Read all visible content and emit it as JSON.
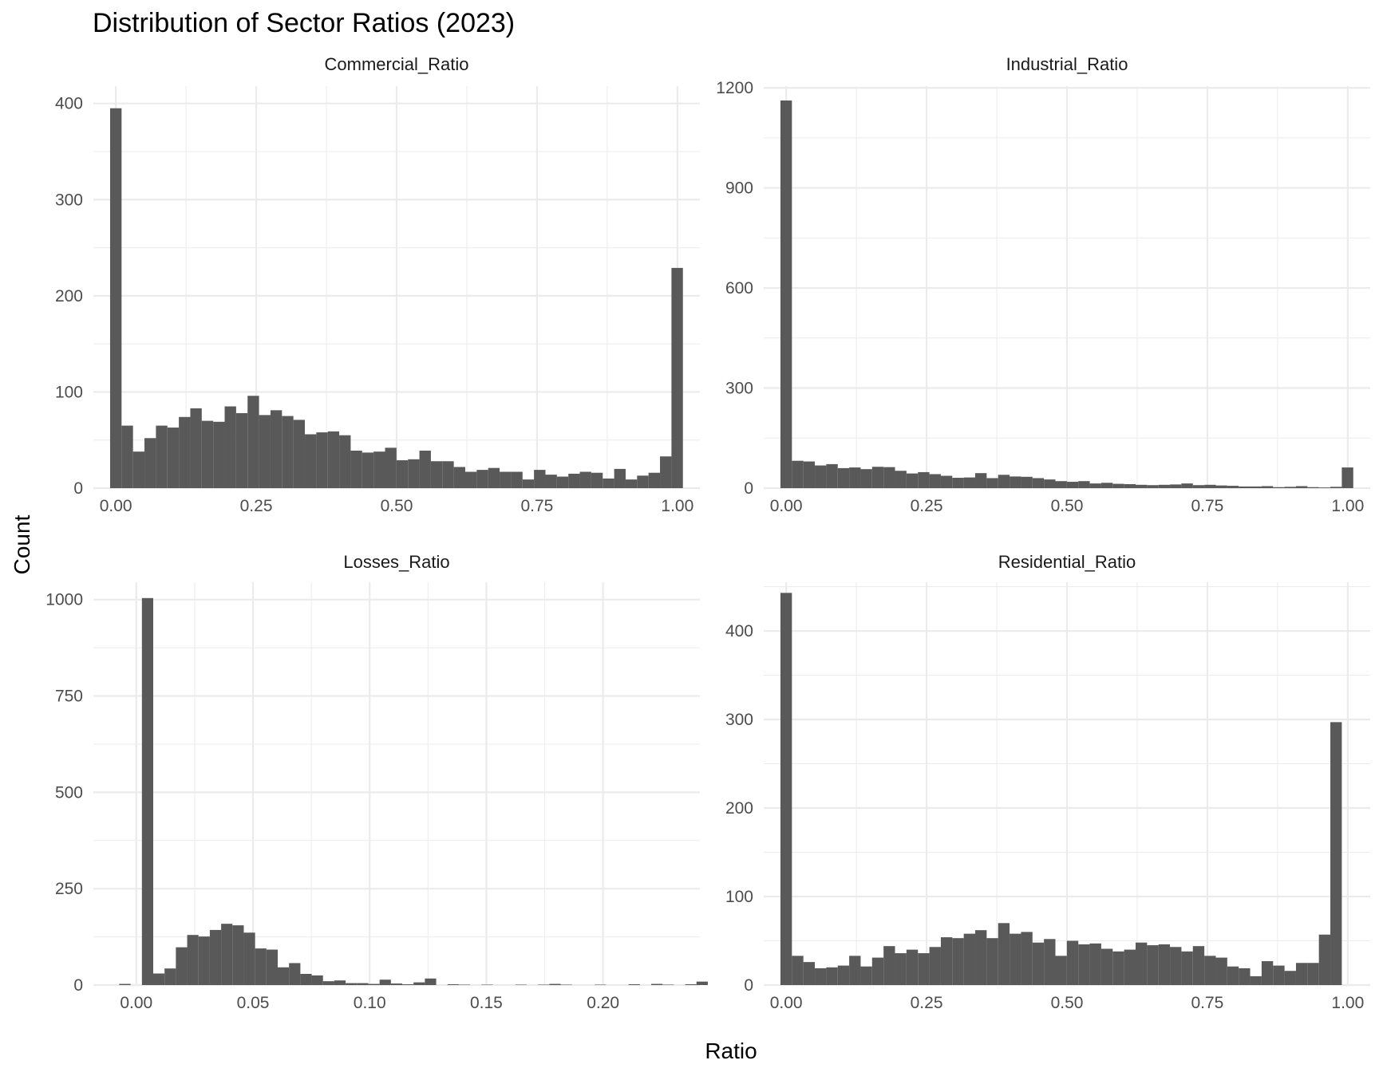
{
  "title": "Distribution of Sector Ratios (2023)",
  "chart_data": {
    "type": "bar",
    "subtype": "faceted-histogram",
    "xlabel": "Ratio",
    "ylabel": "Count",
    "grid": true,
    "bar_color": "#595959",
    "grid_color": "#ebebeb",
    "panels": [
      {
        "name": "Commercial_Ratio",
        "xlim": [
          -0.04,
          1.04
        ],
        "ylim": [
          0,
          418
        ],
        "x_ticks": [
          "0.00",
          "0.25",
          "0.50",
          "0.75",
          "1.00"
        ],
        "x_tick_values": [
          0,
          0.25,
          0.5,
          0.75,
          1.0
        ],
        "y_ticks": [
          "0",
          "100",
          "200",
          "300",
          "400"
        ],
        "y_tick_values": [
          0,
          100,
          200,
          300,
          400
        ],
        "bin_start": -0.0102,
        "bin_width": 0.0204,
        "counts": [
          395,
          65,
          38,
          52,
          65,
          63,
          74,
          83,
          70,
          69,
          85,
          78,
          96,
          76,
          81,
          75,
          71,
          56,
          58,
          59,
          55,
          39,
          37,
          38,
          42,
          29,
          30,
          39,
          28,
          28,
          22,
          17,
          19,
          21,
          17,
          17,
          9,
          19,
          14,
          12,
          15,
          17,
          16,
          10,
          20,
          9,
          13,
          16,
          33,
          229
        ]
      },
      {
        "name": "Industrial_Ratio",
        "xlim": [
          -0.04,
          1.04
        ],
        "ylim": [
          0,
          1205
        ],
        "x_ticks": [
          "0.00",
          "0.25",
          "0.50",
          "0.75",
          "1.00"
        ],
        "x_tick_values": [
          0,
          0.25,
          0.5,
          0.75,
          1.0
        ],
        "y_ticks": [
          "0",
          "300",
          "600",
          "900",
          "1200"
        ],
        "y_tick_values": [
          0,
          300,
          600,
          900,
          1200
        ],
        "bin_start": -0.0102,
        "bin_width": 0.0204,
        "counts": [
          1162,
          82,
          80,
          68,
          72,
          60,
          62,
          57,
          64,
          63,
          52,
          44,
          48,
          42,
          37,
          31,
          32,
          45,
          30,
          40,
          35,
          34,
          30,
          26,
          21,
          19,
          21,
          14,
          16,
          13,
          12,
          10,
          9,
          10,
          11,
          14,
          9,
          10,
          8,
          7,
          5,
          5,
          6,
          3,
          4,
          6,
          3,
          2,
          4,
          62
        ]
      },
      {
        "name": "Losses_Ratio",
        "xlim": [
          -0.0184,
          0.2415
        ],
        "ylim": [
          0,
          1045
        ],
        "x_ticks": [
          "0.00",
          "0.05",
          "0.10",
          "0.15",
          "0.20"
        ],
        "x_tick_values": [
          0,
          0.05,
          0.1,
          0.15,
          0.2
        ],
        "y_ticks": [
          "0",
          "250",
          "500",
          "750",
          "1000"
        ],
        "y_tick_values": [
          0,
          250,
          500,
          750,
          1000
        ],
        "bin_start": -0.0073,
        "bin_width": 0.00485,
        "counts": [
          3,
          0,
          1004,
          30,
          43,
          98,
          130,
          126,
          143,
          159,
          155,
          136,
          95,
          92,
          46,
          57,
          29,
          25,
          10,
          12,
          5,
          5,
          3,
          14,
          4,
          2,
          7,
          17,
          0,
          2,
          1,
          0,
          1,
          0,
          0,
          1,
          0,
          1,
          3,
          1,
          0,
          0,
          1,
          0,
          0,
          2,
          0,
          3,
          1,
          0,
          2,
          9
        ]
      },
      {
        "name": "Residential_Ratio",
        "xlim": [
          -0.04,
          1.04
        ],
        "ylim": [
          0,
          455
        ],
        "x_ticks": [
          "0.00",
          "0.25",
          "0.50",
          "0.75",
          "1.00"
        ],
        "x_tick_values": [
          0,
          0.25,
          0.5,
          0.75,
          1.0
        ],
        "y_ticks": [
          "0",
          "100",
          "200",
          "300",
          "400"
        ],
        "y_tick_values": [
          0,
          100,
          200,
          300,
          400
        ],
        "bin_start": -0.0102,
        "bin_width": 0.0204,
        "counts": [
          443,
          33,
          26,
          19,
          20,
          22,
          33,
          21,
          31,
          44,
          36,
          40,
          36,
          43,
          54,
          53,
          58,
          62,
          53,
          70,
          58,
          60,
          48,
          52,
          33,
          50,
          46,
          47,
          41,
          38,
          40,
          48,
          45,
          46,
          43,
          38,
          44,
          33,
          31,
          21,
          19,
          10,
          27,
          22,
          16,
          25,
          25,
          57,
          297
        ]
      }
    ]
  }
}
